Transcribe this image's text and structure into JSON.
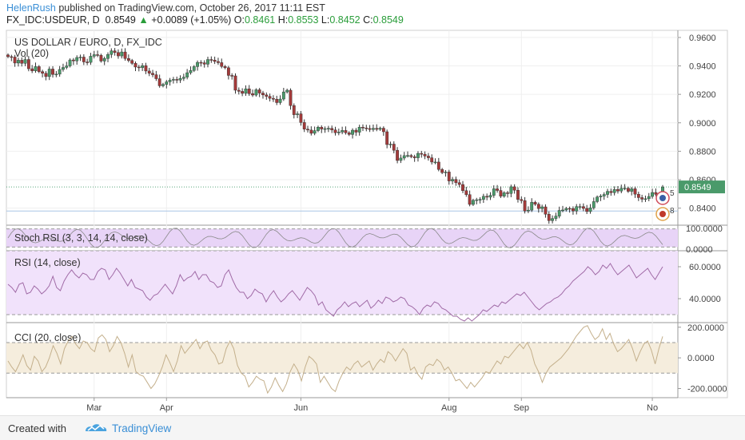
{
  "header": {
    "author": "HelenRush",
    "published_text": "published on TradingView.com, October 26, 2017 11:11 EST",
    "symbol": "FX_IDC:USDEUR, D",
    "last_price": "0.8549",
    "change": "+0.0089 (+1.05%)",
    "open_label": "O:",
    "open": "0.8461",
    "high_label": "H:",
    "high": "0.8553",
    "low_label": "L:",
    "low": "0.8452",
    "close_label": "C:",
    "close": "0.8549"
  },
  "colors": {
    "up": "#4a9a6a",
    "down": "#a33a3a",
    "price_tag": "#4a9a6a",
    "stoch_fill": "#e8d4f7",
    "rsi_fill": "#f1e2fb",
    "cci_fill": "#f5eddd",
    "rsi_line": "#a06aa6",
    "cci_line": "#c4b08c"
  },
  "footer": {
    "created_with": "Created with",
    "brand": "TradingView"
  },
  "chart_data": [
    {
      "type": "candlestick",
      "title": "US DOLLAR / EURO, D, FX_IDC",
      "sub_label": "Vol (20)",
      "ylim": [
        0.828,
        0.965
      ],
      "yticks": [
        "0.9600",
        "0.9400",
        "0.9200",
        "0.9000",
        "0.8800",
        "0.8600",
        "0.8400"
      ],
      "ytick_values": [
        0.96,
        0.94,
        0.92,
        0.9,
        0.88,
        0.86,
        0.84
      ],
      "last_price_tag": "0.8549",
      "last_price": 0.8549,
      "reference_line": 0.838,
      "event_badges": [
        "5",
        "8"
      ],
      "x_labels": [
        "Mar",
        "Apr",
        "Jun",
        "Aug",
        "Sep",
        "No"
      ],
      "x_label_index": [
        25,
        46,
        85,
        128,
        149,
        187
      ],
      "closes": [
        0.9465,
        0.9462,
        0.942,
        0.944,
        0.9418,
        0.9445,
        0.938,
        0.9365,
        0.9395,
        0.936,
        0.9348,
        0.9325,
        0.9378,
        0.934,
        0.9342,
        0.9375,
        0.9389,
        0.94,
        0.9442,
        0.9435,
        0.9459,
        0.9462,
        0.9428,
        0.9425,
        0.9468,
        0.9479,
        0.9475,
        0.9434,
        0.9452,
        0.948,
        0.9506,
        0.9494,
        0.947,
        0.9498,
        0.9452,
        0.9438,
        0.9418,
        0.9392,
        0.9388,
        0.9402,
        0.9364,
        0.9348,
        0.9338,
        0.931,
        0.926,
        0.927,
        0.9288,
        0.93,
        0.9305,
        0.93,
        0.9312,
        0.9321,
        0.9352,
        0.9368,
        0.9395,
        0.9425,
        0.9422,
        0.9412,
        0.9445,
        0.9441,
        0.9431,
        0.9423,
        0.9396,
        0.9387,
        0.9333,
        0.933,
        0.9229,
        0.9221,
        0.9207,
        0.9239,
        0.9205,
        0.9195,
        0.9232,
        0.9209,
        0.9196,
        0.9186,
        0.9172,
        0.9166,
        0.9142,
        0.9167,
        0.9217,
        0.9229,
        0.9121,
        0.9057,
        0.9063,
        0.9002,
        0.8955,
        0.8949,
        0.8926,
        0.8945,
        0.8969,
        0.8956,
        0.8959,
        0.8961,
        0.895,
        0.893,
        0.8935,
        0.8946,
        0.893,
        0.8918,
        0.8948,
        0.8934,
        0.8969,
        0.8964,
        0.896,
        0.8953,
        0.8961,
        0.8954,
        0.8962,
        0.8937,
        0.8847,
        0.885,
        0.8807,
        0.8735,
        0.8752,
        0.8769,
        0.877,
        0.8762,
        0.8754,
        0.8785,
        0.8779,
        0.8766,
        0.8754,
        0.8724,
        0.8724,
        0.8672,
        0.865,
        0.8654,
        0.8591,
        0.8602,
        0.8579,
        0.8566,
        0.8523,
        0.8495,
        0.8426,
        0.8455,
        0.8459,
        0.8461,
        0.8483,
        0.8477,
        0.849,
        0.8536,
        0.8524,
        0.8484,
        0.8508,
        0.8503,
        0.855,
        0.8526,
        0.8461,
        0.8453,
        0.838,
        0.8386,
        0.8441,
        0.8427,
        0.8397,
        0.8409,
        0.8357,
        0.8312,
        0.8327,
        0.8344,
        0.8384,
        0.8387,
        0.8398,
        0.8397,
        0.838,
        0.8411,
        0.8411,
        0.8398,
        0.8376,
        0.8402,
        0.8446,
        0.8478,
        0.8485,
        0.8496,
        0.8518,
        0.8509,
        0.8531,
        0.852,
        0.8539,
        0.854,
        0.8518,
        0.8536,
        0.8498,
        0.8474,
        0.8463,
        0.8466,
        0.8482,
        0.851,
        0.8497,
        0.846,
        0.8549
      ]
    },
    {
      "type": "line",
      "title": "Stoch RSI (3, 3, 14, 14, close)",
      "ylim": [
        0,
        100
      ],
      "yticks": [
        "100.0000",
        "0.0000"
      ],
      "band": [
        20,
        80
      ]
    },
    {
      "type": "line",
      "title": "RSI (14, close)",
      "ylim": [
        25,
        70
      ],
      "yticks": [
        "60.0000",
        "40.0000"
      ],
      "band": [
        30,
        70
      ],
      "values": [
        49,
        47,
        44,
        49,
        50,
        43,
        44,
        48,
        46,
        43,
        45,
        48,
        54,
        47,
        45,
        51,
        55,
        58,
        55,
        53,
        56,
        55,
        52,
        52,
        57,
        59,
        58,
        52,
        55,
        59,
        56,
        52,
        48,
        52,
        47,
        46,
        45,
        41,
        39,
        42,
        43,
        46,
        49,
        46,
        43,
        48,
        55,
        51,
        53,
        54,
        57,
        52,
        55,
        55,
        51,
        50,
        47,
        48,
        55,
        58,
        52,
        47,
        44,
        44,
        40,
        42,
        46,
        44,
        43,
        38,
        42,
        45,
        41,
        38,
        40,
        43,
        45,
        42,
        39,
        43,
        47,
        45,
        42,
        36,
        38,
        33,
        31,
        29,
        33,
        35,
        38,
        35,
        37,
        38,
        35,
        37,
        39,
        34,
        36,
        39,
        37,
        41,
        40,
        38,
        39,
        41,
        40,
        36,
        35,
        33,
        30,
        34,
        36,
        35,
        38,
        37,
        34,
        33,
        31,
        29,
        29,
        27,
        26,
        28,
        26,
        28,
        30,
        33,
        32,
        34,
        36,
        35,
        38,
        37,
        39,
        41,
        43,
        42,
        44,
        41,
        38,
        35,
        33,
        35,
        37,
        38,
        40,
        41,
        43,
        46,
        48,
        51,
        53,
        55,
        57,
        60,
        58,
        55,
        57,
        61,
        59,
        62,
        58,
        55,
        57,
        59,
        61,
        57,
        53,
        55,
        57,
        59,
        55,
        52,
        56,
        60
      ]
    },
    {
      "type": "line",
      "title": "CCI (20, close)",
      "ylim": [
        -260,
        230
      ],
      "yticks": [
        "200.0000",
        "0.0000",
        "-200.0000"
      ],
      "band": [
        -100,
        100
      ],
      "values": [
        -20,
        -60,
        -90,
        -40,
        20,
        -50,
        -80,
        10,
        -20,
        -90,
        -60,
        0,
        80,
        30,
        -40,
        60,
        110,
        140,
        90,
        60,
        110,
        100,
        60,
        40,
        130,
        150,
        120,
        40,
        80,
        140,
        100,
        30,
        -60,
        20,
        -90,
        -110,
        -120,
        -160,
        -200,
        -170,
        -120,
        -60,
        20,
        -30,
        -90,
        -20,
        80,
        30,
        60,
        90,
        120,
        60,
        100,
        110,
        50,
        20,
        -40,
        -30,
        60,
        110,
        60,
        -50,
        -100,
        -120,
        -190,
        -160,
        -120,
        -140,
        -150,
        -230,
        -190,
        -130,
        -180,
        -220,
        -170,
        -90,
        -40,
        -80,
        -150,
        -60,
        10,
        -10,
        -40,
        -160,
        -120,
        -160,
        -200,
        -220,
        -150,
        -100,
        -60,
        -80,
        -40,
        -20,
        -60,
        -40,
        -20,
        -80,
        -40,
        -10,
        -30,
        40,
        20,
        -20,
        20,
        60,
        30,
        -80,
        -60,
        -110,
        -140,
        -60,
        -40,
        -50,
        -10,
        -30,
        -80,
        -60,
        -100,
        -150,
        -140,
        -170,
        -200,
        -160,
        -190,
        -160,
        -130,
        -90,
        -100,
        -60,
        -20,
        -40,
        10,
        0,
        30,
        60,
        90,
        60,
        100,
        50,
        -40,
        -90,
        -160,
        -100,
        -60,
        -40,
        -20,
        0,
        30,
        60,
        100,
        140,
        170,
        200,
        210,
        160,
        120,
        140,
        190,
        120,
        160,
        90,
        40,
        60,
        90,
        120,
        60,
        -20,
        40,
        90,
        110,
        50,
        -40,
        60,
        140
      ]
    }
  ]
}
